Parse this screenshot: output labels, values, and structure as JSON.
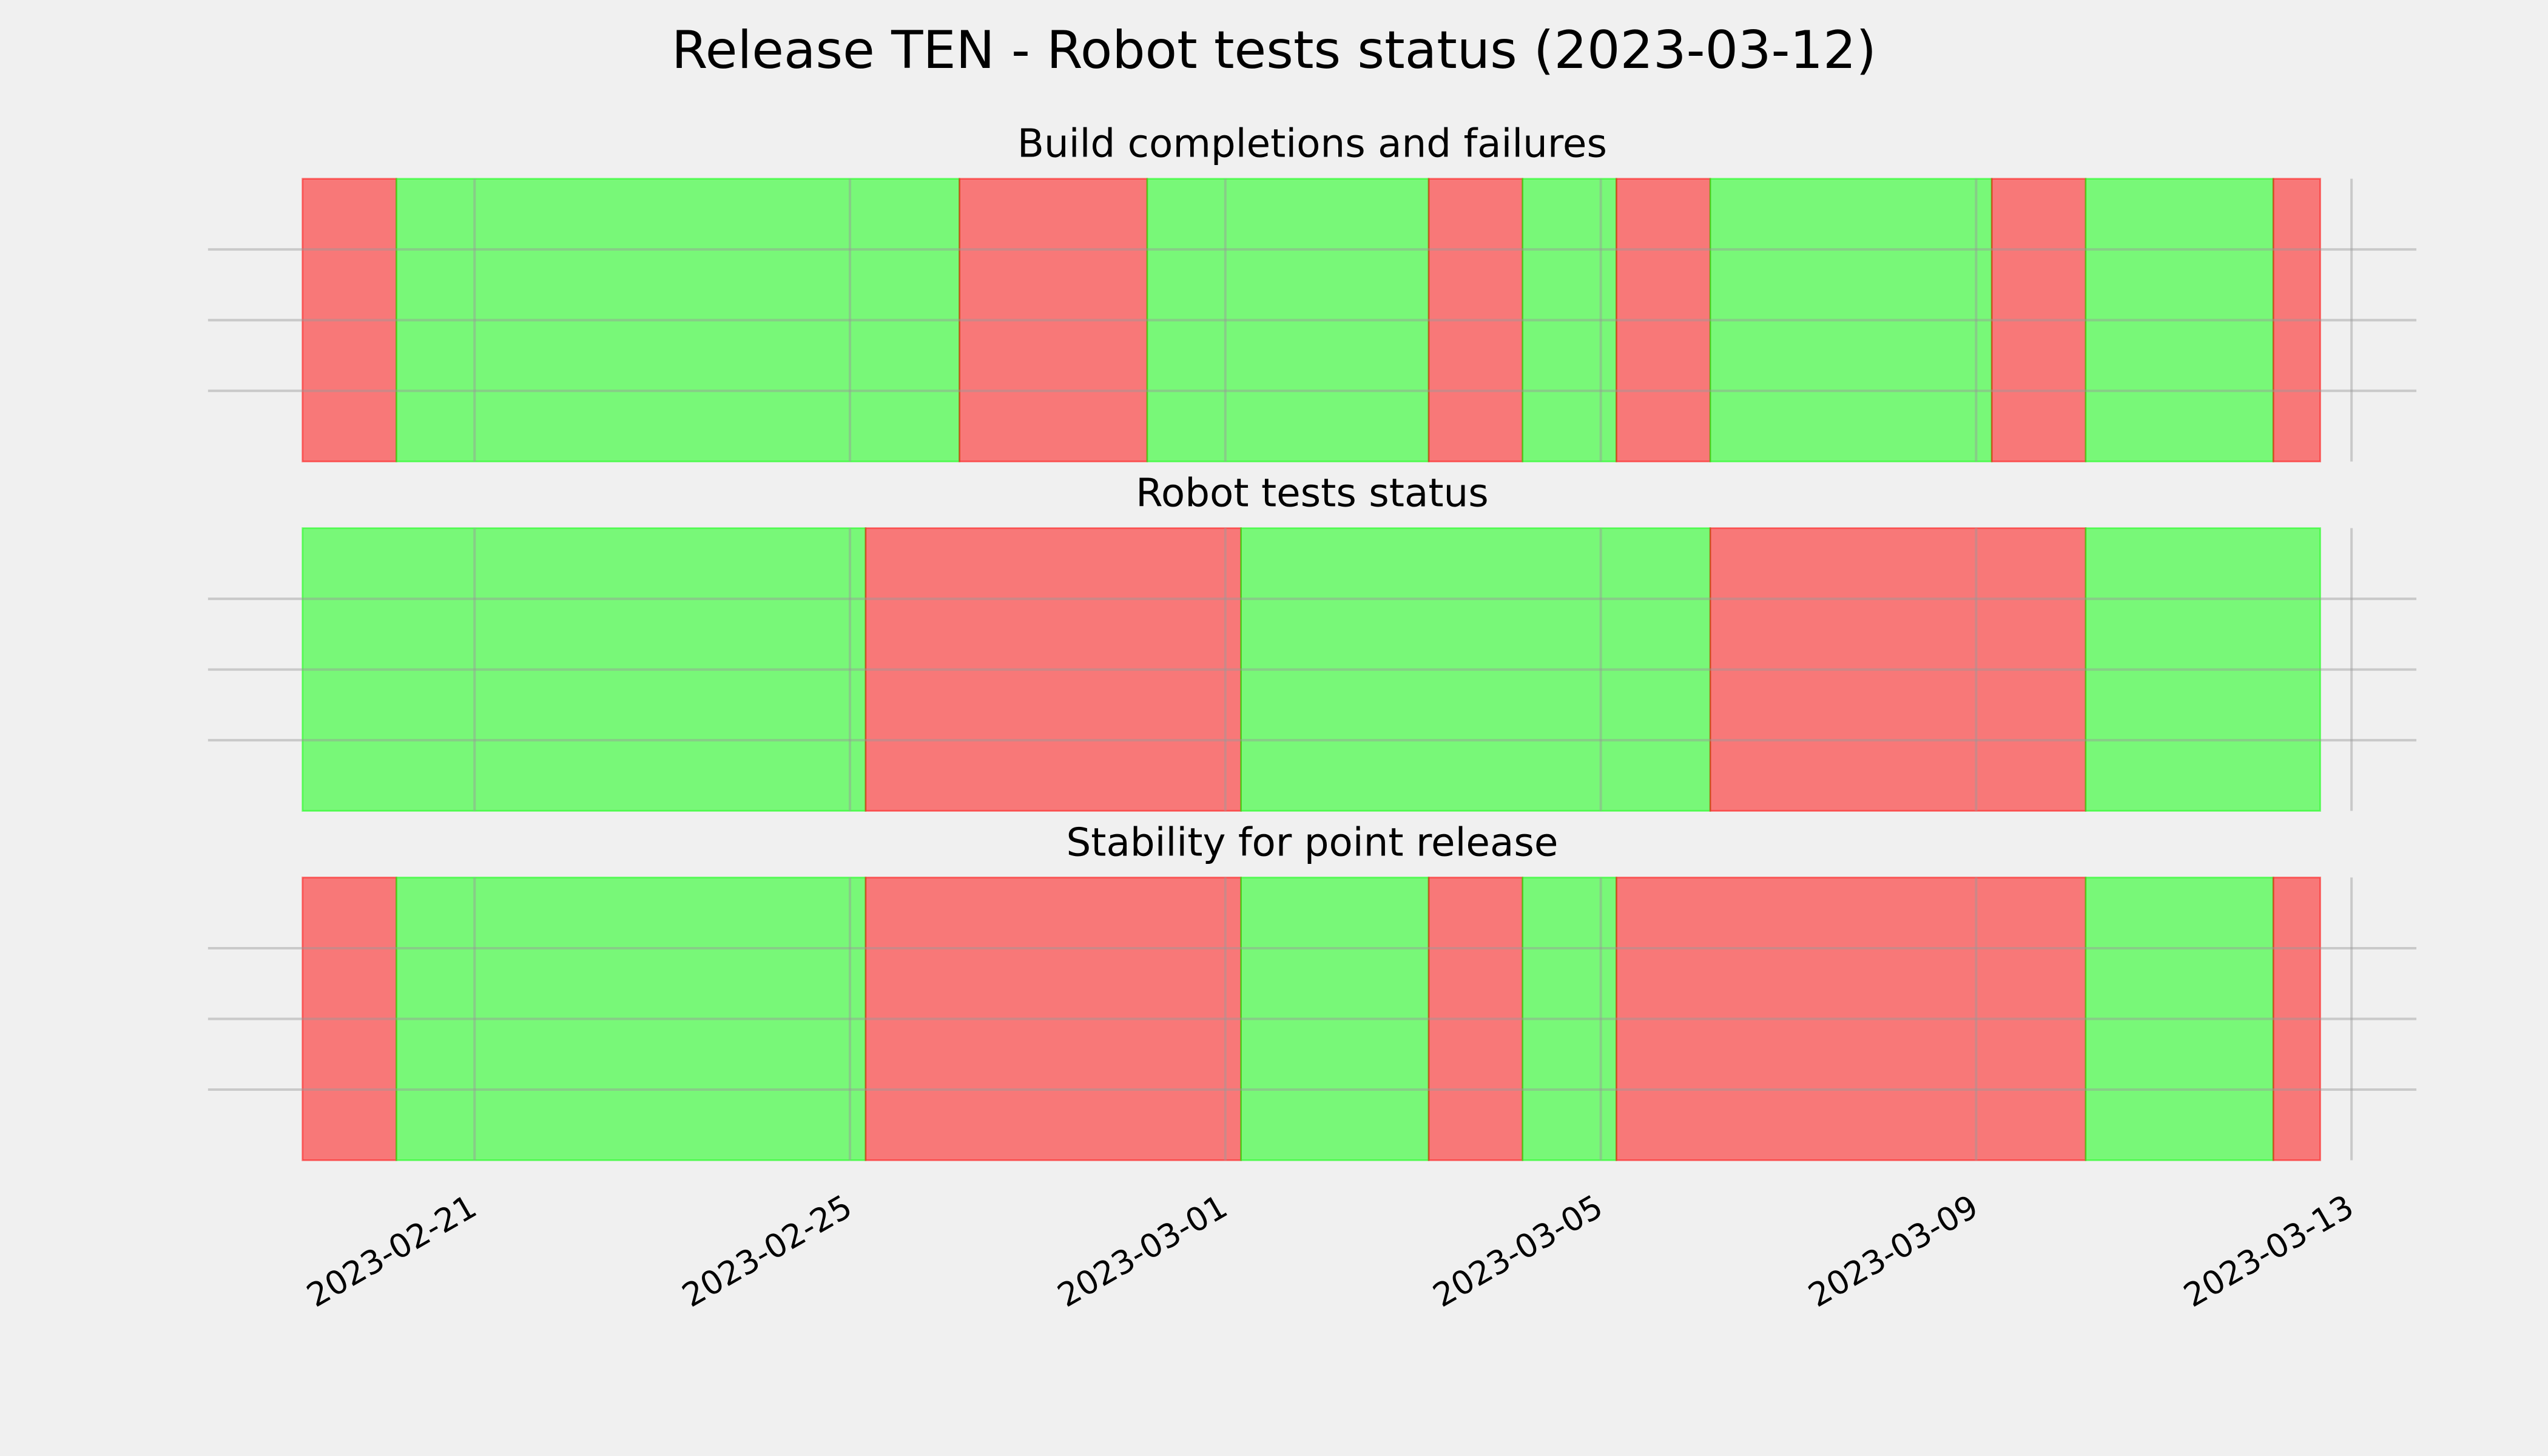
{
  "title": "Release TEN - Robot tests status (2023-03-12)",
  "chart_data": [
    {
      "type": "timeline",
      "title": "Build completions and failures",
      "xlim": [
        "2023-02-18 03:50",
        "2023-03-13 16:35"
      ],
      "xticks": [
        "2023-02-21",
        "2023-02-25",
        "2023-03-01",
        "2023-03-05",
        "2023-03-09",
        "2023-03-13"
      ],
      "xtick_labels": false,
      "ylim": [
        0,
        1
      ],
      "yticks": [
        0.25,
        0.5,
        0.75
      ],
      "grid": true,
      "spans": [
        {
          "start": "2023-02-19 04:00",
          "end": "2023-02-20 04:00",
          "color": "#ff0000"
        },
        {
          "start": "2023-02-20 04:00",
          "end": "2023-02-26 04:00",
          "color": "#00ff00"
        },
        {
          "start": "2023-02-26 04:00",
          "end": "2023-02-28 04:00",
          "color": "#ff0000"
        },
        {
          "start": "2023-02-28 04:00",
          "end": "2023-03-03 04:00",
          "color": "#00ff00"
        },
        {
          "start": "2023-03-03 04:00",
          "end": "2023-03-04 04:00",
          "color": "#ff0000"
        },
        {
          "start": "2023-03-04 04:00",
          "end": "2023-03-05 04:00",
          "color": "#00ff00"
        },
        {
          "start": "2023-03-05 04:00",
          "end": "2023-03-06 04:00",
          "color": "#ff0000"
        },
        {
          "start": "2023-03-06 04:00",
          "end": "2023-03-09 04:00",
          "color": "#00ff00"
        },
        {
          "start": "2023-03-09 04:00",
          "end": "2023-03-10 04:00",
          "color": "#ff0000"
        },
        {
          "start": "2023-03-10 04:00",
          "end": "2023-03-12 04:00",
          "color": "#00ff00"
        },
        {
          "start": "2023-03-12 04:00",
          "end": "2023-03-12 16:00",
          "color": "#ff0000"
        }
      ]
    },
    {
      "type": "timeline",
      "title": "Robot tests status",
      "xlim": [
        "2023-02-18 03:50",
        "2023-03-13 16:35"
      ],
      "xticks": [
        "2023-02-21",
        "2023-02-25",
        "2023-03-01",
        "2023-03-05",
        "2023-03-09",
        "2023-03-13"
      ],
      "xtick_labels": false,
      "ylim": [
        0,
        1
      ],
      "yticks": [
        0.25,
        0.5,
        0.75
      ],
      "grid": true,
      "spans": [
        {
          "start": "2023-02-19 04:00",
          "end": "2023-02-25 04:00",
          "color": "#00ff00"
        },
        {
          "start": "2023-02-25 04:00",
          "end": "2023-03-01 04:00",
          "color": "#ff0000"
        },
        {
          "start": "2023-03-01 04:00",
          "end": "2023-03-06 04:00",
          "color": "#00ff00"
        },
        {
          "start": "2023-03-06 04:00",
          "end": "2023-03-10 04:00",
          "color": "#ff0000"
        },
        {
          "start": "2023-03-10 04:00",
          "end": "2023-03-12 16:00",
          "color": "#00ff00"
        }
      ]
    },
    {
      "type": "timeline",
      "title": "Stability for point release",
      "xlim": [
        "2023-02-18 03:50",
        "2023-03-13 16:35"
      ],
      "xticks": [
        "2023-02-21",
        "2023-02-25",
        "2023-03-01",
        "2023-03-05",
        "2023-03-09",
        "2023-03-13"
      ],
      "xtick_labels": true,
      "ylim": [
        0,
        1
      ],
      "yticks": [
        0.25,
        0.5,
        0.75
      ],
      "grid": true,
      "spans": [
        {
          "start": "2023-02-19 04:00",
          "end": "2023-02-20 04:00",
          "color": "#ff0000"
        },
        {
          "start": "2023-02-20 04:00",
          "end": "2023-02-25 04:00",
          "color": "#00ff00"
        },
        {
          "start": "2023-02-25 04:00",
          "end": "2023-03-01 04:00",
          "color": "#ff0000"
        },
        {
          "start": "2023-03-01 04:00",
          "end": "2023-03-03 04:00",
          "color": "#00ff00"
        },
        {
          "start": "2023-03-03 04:00",
          "end": "2023-03-04 04:00",
          "color": "#ff0000"
        },
        {
          "start": "2023-03-04 04:00",
          "end": "2023-03-05 04:00",
          "color": "#00ff00"
        },
        {
          "start": "2023-03-05 04:00",
          "end": "2023-03-10 04:00",
          "color": "#ff0000"
        },
        {
          "start": "2023-03-10 04:00",
          "end": "2023-03-12 04:00",
          "color": "#00ff00"
        },
        {
          "start": "2023-03-12 04:00",
          "end": "2023-03-12 16:00",
          "color": "#ff0000"
        }
      ]
    }
  ]
}
